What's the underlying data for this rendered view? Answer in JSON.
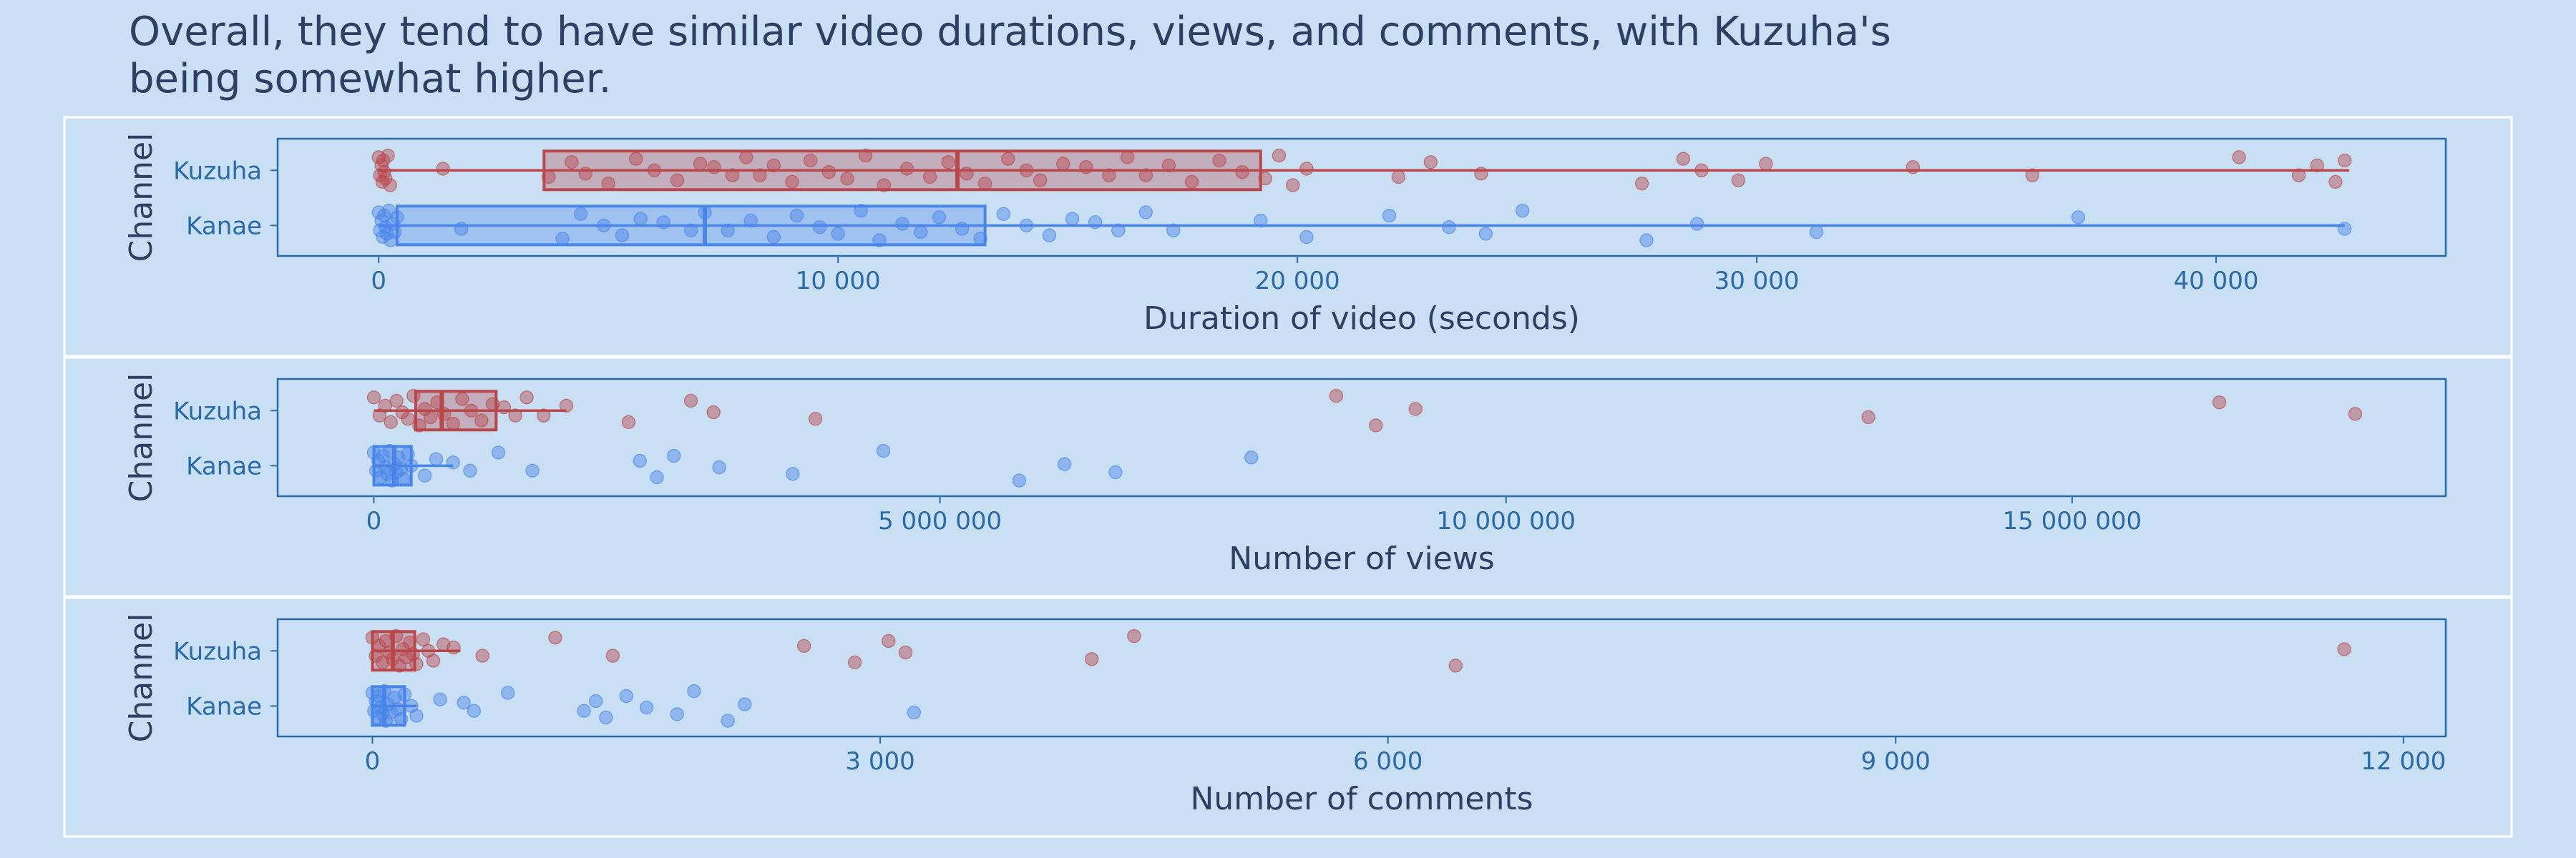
{
  "title": "Overall, they tend to have similar video durations, views, and comments, with Kuzuha's being somewhat higher.",
  "colors": {
    "background": "#c9dff3",
    "frame": "#2b6aa8",
    "tick_text": "#2b6aa8",
    "axis_title": "#2f3e63",
    "kuzuha": "#b9474b",
    "kanae": "#4a86e8"
  },
  "chart_data": [
    {
      "type": "box",
      "title": "",
      "xlabel": "Duration of video (seconds)",
      "ylabel": "Channel",
      "categories": [
        "Kuzuha",
        "Kanae"
      ],
      "xlim": [
        -2200,
        45000
      ],
      "xticks": [
        0,
        10000,
        20000,
        30000,
        40000
      ],
      "xtick_labels": [
        "0",
        "10 000",
        "20 000",
        "30 000",
        "40 000"
      ],
      "grid": false,
      "series": [
        {
          "name": "Kuzuha",
          "stats": {
            "min": 0,
            "q1": 3600,
            "median": 12600,
            "q3": 19200,
            "max": 42900
          },
          "points": [
            0,
            30,
            60,
            80,
            100,
            120,
            150,
            200,
            250,
            1400,
            3700,
            4200,
            4500,
            5000,
            5600,
            6000,
            6500,
            7000,
            7300,
            7700,
            8000,
            8300,
            8600,
            9000,
            9400,
            9800,
            10200,
            10600,
            11000,
            11500,
            12000,
            12400,
            12800,
            13200,
            13700,
            14100,
            14400,
            14900,
            15400,
            15900,
            16300,
            16700,
            17200,
            17700,
            18300,
            18800,
            19300,
            19600,
            19900,
            20200,
            22200,
            22900,
            24000,
            27500,
            28400,
            28800,
            29600,
            30200,
            33400,
            36000,
            40500,
            41800,
            42200,
            42600,
            42800
          ]
        },
        {
          "name": "Kanae",
          "stats": {
            "min": 0,
            "q1": 400,
            "median": 7100,
            "q3": 13200,
            "max": 42800
          },
          "points": [
            0,
            30,
            60,
            90,
            120,
            150,
            180,
            220,
            260,
            300,
            350,
            400,
            1800,
            4000,
            4400,
            4900,
            5300,
            5700,
            6200,
            6800,
            7100,
            7600,
            8100,
            8600,
            9100,
            9600,
            10000,
            10500,
            10900,
            11400,
            11800,
            12200,
            12700,
            13100,
            13600,
            14100,
            14600,
            15100,
            15600,
            16100,
            16700,
            17300,
            19200,
            20200,
            22000,
            23300,
            24100,
            24900,
            27600,
            28700,
            31300,
            37000,
            42800
          ]
        }
      ]
    },
    {
      "type": "box",
      "title": "",
      "xlabel": "Number of views",
      "ylabel": "Channel",
      "categories": [
        "Kuzuha",
        "Kanae"
      ],
      "xlim": [
        -850000,
        18300000
      ],
      "xticks": [
        0,
        5000000,
        10000000,
        15000000
      ],
      "xtick_labels": [
        "0",
        "5 000 000",
        "10 000 000",
        "15 000 000"
      ],
      "grid": false,
      "series": [
        {
          "name": "Kuzuha",
          "stats": {
            "min": 0,
            "q1": 370000,
            "median": 600000,
            "q3": 1080000,
            "max": 1700000
          },
          "points": [
            0,
            50000,
            100000,
            150000,
            200000,
            250000,
            300000,
            350000,
            400000,
            450000,
            500000,
            560000,
            620000,
            700000,
            780000,
            860000,
            950000,
            1050000,
            1150000,
            1250000,
            1350000,
            1500000,
            1700000,
            2250000,
            2800000,
            3000000,
            3900000,
            8500000,
            8850000,
            9200000,
            13200000,
            16300000,
            17500000
          ]
        },
        {
          "name": "Kanae",
          "stats": {
            "min": 0,
            "q1": 0,
            "median": 180000,
            "q3": 330000,
            "max": 700000
          },
          "points": [
            0,
            20000,
            40000,
            60000,
            80000,
            100000,
            120000,
            140000,
            160000,
            180000,
            200000,
            220000,
            240000,
            260000,
            300000,
            330000,
            450000,
            550000,
            700000,
            850000,
            1100000,
            1400000,
            2350000,
            2500000,
            2650000,
            3050000,
            3700000,
            4500000,
            5700000,
            6100000,
            6550000,
            7750000
          ]
        }
      ]
    },
    {
      "type": "box",
      "title": "",
      "xlabel": "Number of comments",
      "ylabel": "Channel",
      "categories": [
        "Kuzuha",
        "Kanae"
      ],
      "xlim": [
        -560,
        12250
      ],
      "xticks": [
        0,
        3000,
        6000,
        9000,
        12000
      ],
      "xtick_labels": [
        "0",
        "3 000",
        "6 000",
        "9 000",
        "12 000"
      ],
      "grid": false,
      "series": [
        {
          "name": "Kuzuha",
          "stats": {
            "min": 0,
            "q1": 0,
            "median": 120,
            "q3": 250,
            "max": 520
          },
          "points": [
            0,
            20,
            40,
            60,
            80,
            100,
            120,
            140,
            160,
            180,
            200,
            220,
            240,
            260,
            300,
            330,
            360,
            420,
            480,
            650,
            1080,
            1420,
            2550,
            2850,
            3050,
            3150,
            4250,
            4500,
            6400,
            11650
          ]
        },
        {
          "name": "Kanae",
          "stats": {
            "min": 0,
            "q1": 0,
            "median": 70,
            "q3": 190,
            "max": 260
          },
          "points": [
            0,
            10,
            20,
            30,
            40,
            50,
            60,
            70,
            80,
            90,
            110,
            130,
            150,
            170,
            190,
            230,
            260,
            400,
            540,
            600,
            800,
            1250,
            1320,
            1380,
            1500,
            1620,
            1800,
            1900,
            2100,
            2200,
            3200
          ]
        }
      ]
    }
  ]
}
